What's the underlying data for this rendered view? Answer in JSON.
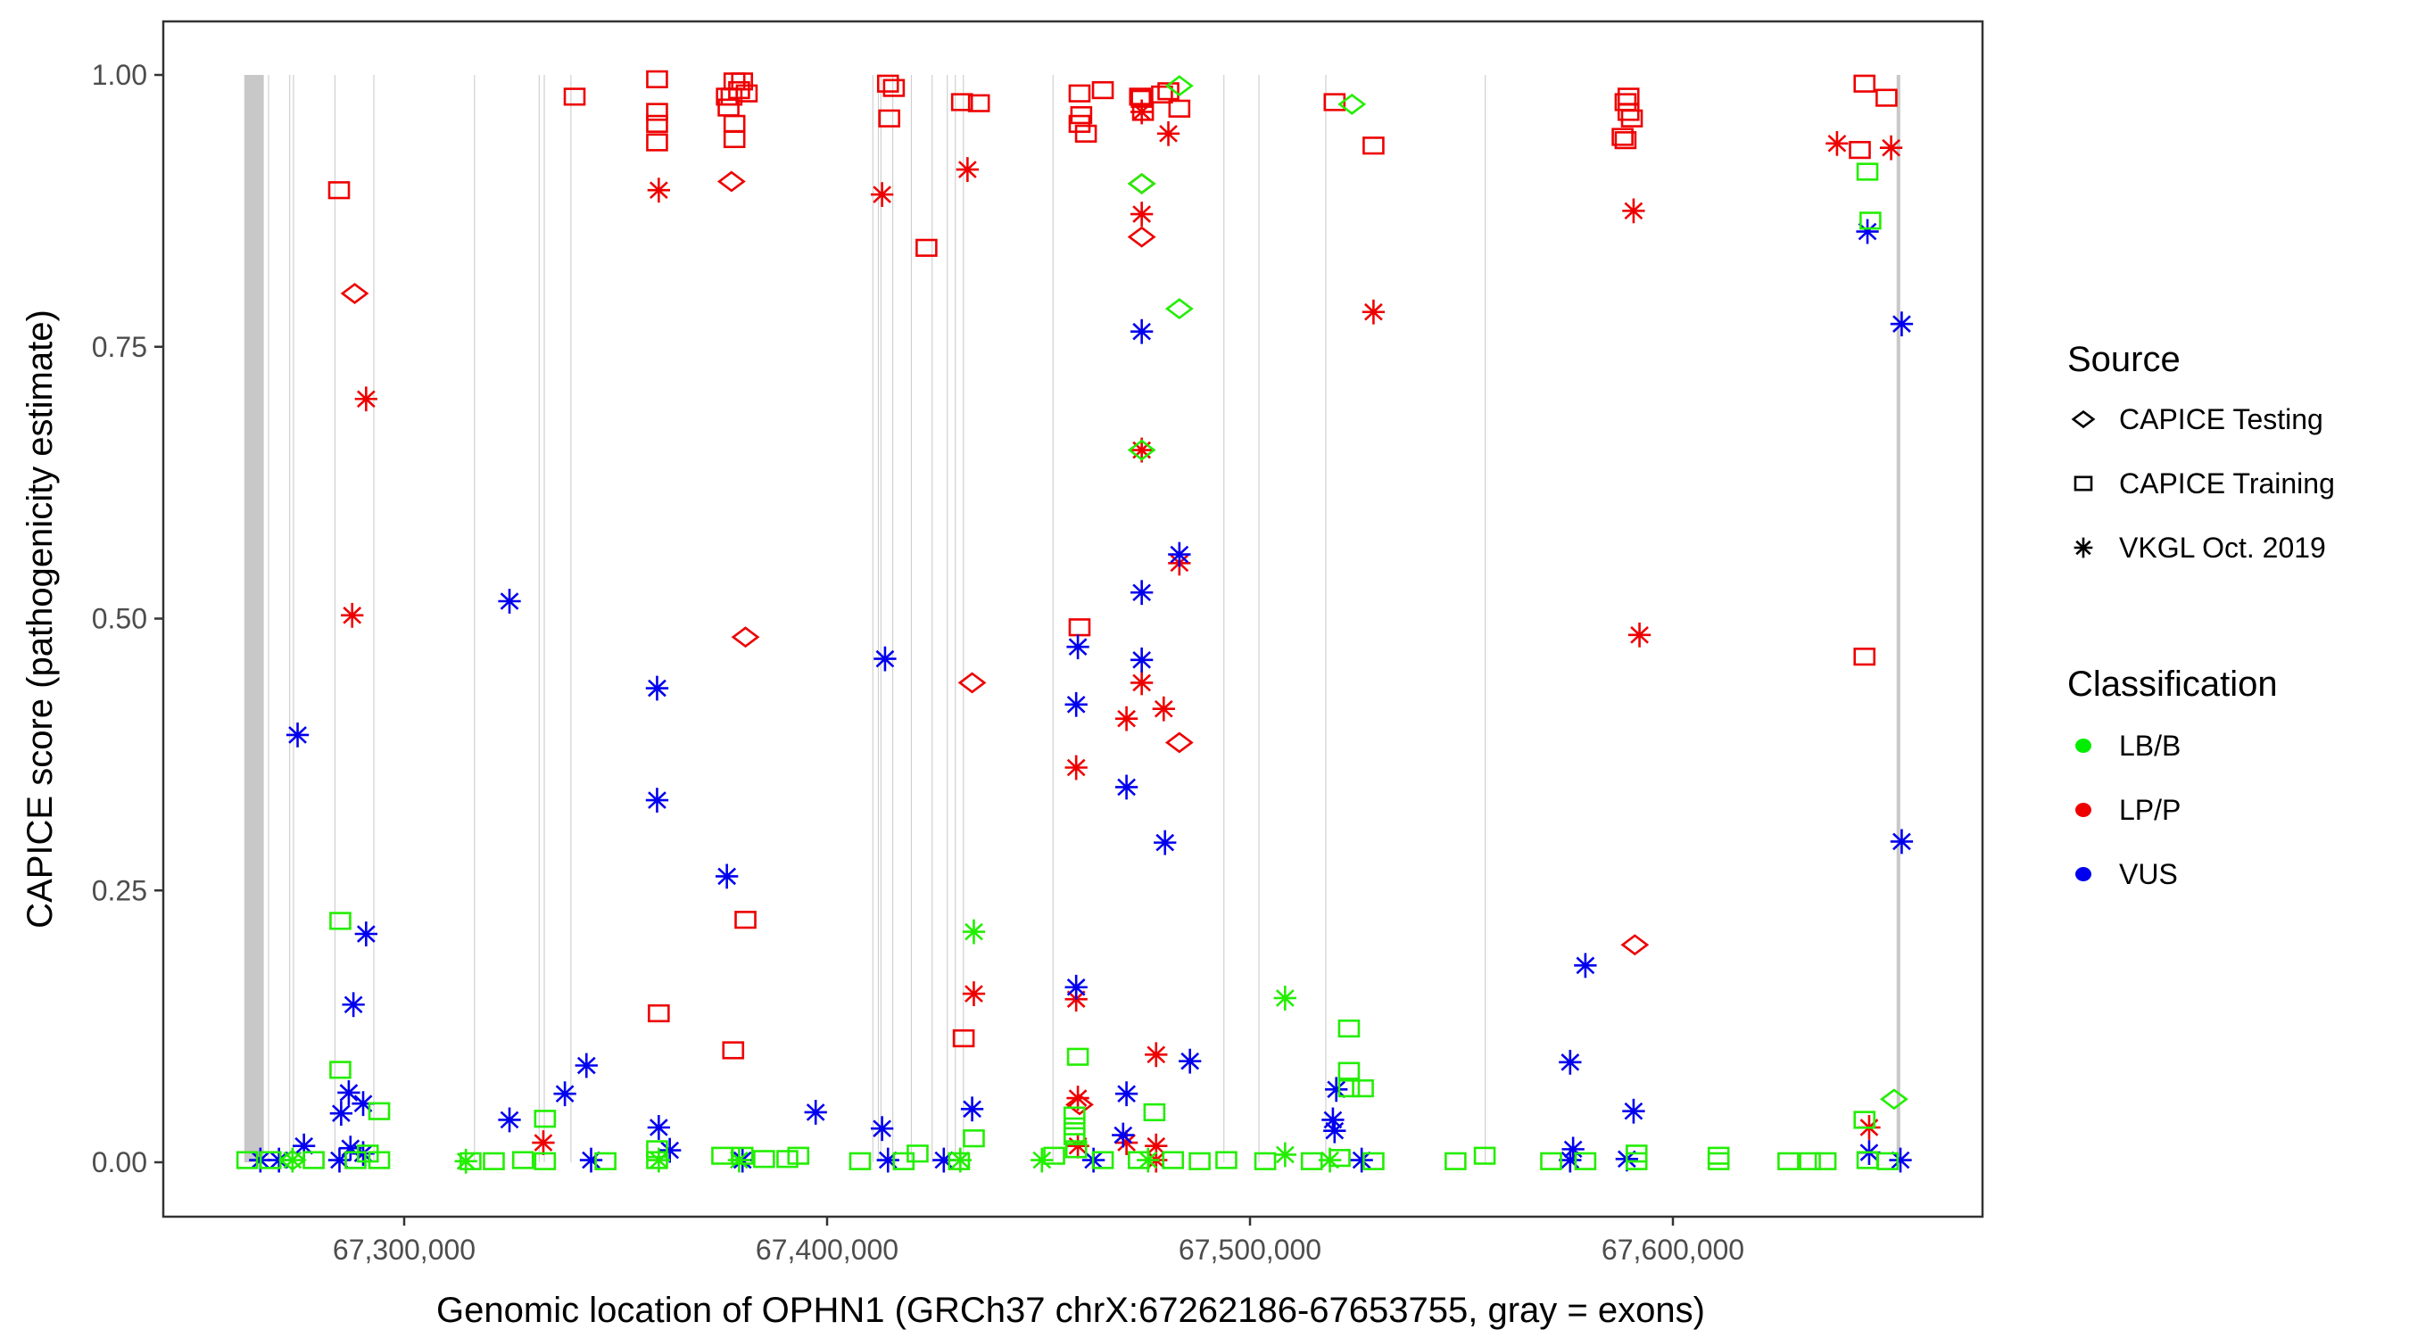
{
  "chart_data": {
    "type": "scatter",
    "title": "",
    "xlabel": "Genomic location of OPHN1 (GRCh37 chrX:67262186-67653755, gray = exons)",
    "ylabel": "CAPICE score (pathogenicity estimate)",
    "xlim": [
      67246000,
      67664000
    ],
    "ylim": [
      -0.05,
      1.05
    ],
    "x_ticks": [
      67300000,
      67400000,
      67500000,
      67600000
    ],
    "x_tick_labels": [
      "67,300,000",
      "67,400,000",
      "67,500,000",
      "67,600,000"
    ],
    "y_ticks": [
      0,
      0.25,
      0.5,
      0.75,
      1.0
    ],
    "y_tick_labels": [
      "0.00",
      "0.25",
      "0.50",
      "0.75",
      "1.00"
    ],
    "grid": false,
    "gene_range": [
      67262186,
      67653755
    ],
    "exons": [
      [
        67262186,
        67266800
      ],
      [
        67267800,
        67268000
      ],
      [
        67272800,
        67273000
      ],
      [
        67273700,
        67273900
      ],
      [
        67283500,
        67283700
      ],
      [
        67292700,
        67292900
      ],
      [
        67316500,
        67316700
      ],
      [
        67331800,
        67332000
      ],
      [
        67333000,
        67333200
      ],
      [
        67339300,
        67339500
      ],
      [
        67410700,
        67410900
      ],
      [
        67412000,
        67412200
      ],
      [
        67412600,
        67412800
      ],
      [
        67415400,
        67415600
      ],
      [
        67419800,
        67420000
      ],
      [
        67424700,
        67424900
      ],
      [
        67428300,
        67428500
      ],
      [
        67430200,
        67430400
      ],
      [
        67432100,
        67432300
      ],
      [
        67453300,
        67453500
      ],
      [
        67493700,
        67493900
      ],
      [
        67502000,
        67502200
      ],
      [
        67517800,
        67518000
      ],
      [
        67555500,
        67555700
      ],
      [
        67652900,
        67653755
      ]
    ],
    "legend": {
      "placement": "right",
      "source_title": "Source",
      "source_items": [
        {
          "label": "CAPICE Testing",
          "shape": "diamond"
        },
        {
          "label": "CAPICE Training",
          "shape": "square"
        },
        {
          "label": "VKGL Oct. 2019",
          "shape": "asterisk"
        }
      ],
      "class_title": "Classification",
      "class_items": [
        {
          "label": "LB/B",
          "color": "#00ee00"
        },
        {
          "label": "LP/P",
          "color": "#ee0000"
        },
        {
          "label": "VUS",
          "color": "#0000ee"
        }
      ]
    },
    "colors": {
      "LB/B": "#22ee00",
      "LP/P": "#ee0000",
      "VUS": "#0000ee"
    },
    "series": [
      {
        "source": "CAPICE Training",
        "class": "LP/P",
        "points": [
          [
            67284600,
            0.894
          ],
          [
            67340300,
            0.98
          ],
          [
            67359800,
            0.996
          ],
          [
            67359800,
            0.966
          ],
          [
            67359800,
            0.955
          ],
          [
            67359800,
            0.938
          ],
          [
            67376300,
            0.98
          ],
          [
            67378100,
            0.994
          ],
          [
            67379200,
            0.986
          ],
          [
            67379900,
            0.994
          ],
          [
            67381000,
            0.983
          ],
          [
            67376700,
            0.97
          ],
          [
            67378100,
            0.955
          ],
          [
            67378100,
            0.941
          ],
          [
            67377400,
            0.98
          ],
          [
            67414400,
            0.992
          ],
          [
            67415800,
            0.988
          ],
          [
            67414700,
            0.96
          ],
          [
            67423500,
            0.841
          ],
          [
            67431900,
            0.975
          ],
          [
            67435900,
            0.974
          ],
          [
            67459700,
            0.983
          ],
          [
            67460100,
            0.963
          ],
          [
            67459700,
            0.955
          ],
          [
            67461200,
            0.946
          ],
          [
            67465200,
            0.986
          ],
          [
            67474000,
            0.98
          ],
          [
            67474700,
            0.966
          ],
          [
            67474400,
            0.978
          ],
          [
            67479200,
            0.982
          ],
          [
            67480700,
            0.985
          ],
          [
            67483300,
            0.969
          ],
          [
            67520000,
            0.975
          ],
          [
            67529200,
            0.935
          ],
          [
            67588800,
            0.975
          ],
          [
            67589500,
            0.98
          ],
          [
            67589500,
            0.966
          ],
          [
            67590300,
            0.96
          ],
          [
            67588100,
            0.943
          ],
          [
            67588800,
            0.94
          ],
          [
            67645300,
            0.992
          ],
          [
            67650500,
            0.979
          ],
          [
            67644200,
            0.931
          ],
          [
            67645300,
            0.465
          ],
          [
            67360200,
            0.137
          ],
          [
            67377800,
            0.103
          ],
          [
            67380700,
            0.223
          ],
          [
            67432300,
            0.114
          ],
          [
            67459700,
            0.492
          ]
        ]
      },
      {
        "source": "CAPICE Testing",
        "class": "LP/P",
        "points": [
          [
            67288300,
            0.799
          ],
          [
            67377400,
            0.902
          ],
          [
            67380700,
            0.483
          ],
          [
            67434300,
            0.441
          ],
          [
            67474400,
            0.9
          ],
          [
            67474400,
            0.851
          ],
          [
            67483300,
            0.386
          ],
          [
            67591000,
            0.2
          ],
          [
            67459700,
            0.053
          ]
        ]
      },
      {
        "source": "VKGL Oct. 2019",
        "class": "LP/P",
        "points": [
          [
            67291000,
            0.702
          ],
          [
            67287700,
            0.503
          ],
          [
            67360200,
            0.894
          ],
          [
            67413000,
            0.89
          ],
          [
            67433200,
            0.913
          ],
          [
            67480700,
            0.946
          ],
          [
            67474400,
            0.966
          ],
          [
            67474400,
            0.872
          ],
          [
            67474400,
            0.655
          ],
          [
            67483300,
            0.551
          ],
          [
            67474400,
            0.441
          ],
          [
            67470800,
            0.408
          ],
          [
            67479600,
            0.417
          ],
          [
            67458900,
            0.363
          ],
          [
            67529200,
            0.782
          ],
          [
            67638800,
            0.937
          ],
          [
            67651600,
            0.933
          ],
          [
            67590700,
            0.875
          ],
          [
            67592100,
            0.485
          ],
          [
            67434700,
            0.155
          ],
          [
            67458900,
            0.15
          ],
          [
            67477800,
            0.099
          ],
          [
            67459300,
            0.059
          ],
          [
            67459300,
            0.015
          ],
          [
            67332900,
            0.018
          ],
          [
            67470800,
            0.018
          ],
          [
            67477800,
            0.015
          ],
          [
            67477800,
            0.002
          ],
          [
            67646400,
            0.032
          ]
        ]
      },
      {
        "source": "VKGL Oct. 2019",
        "class": "VUS",
        "points": [
          [
            67274800,
            0.393
          ],
          [
            67291000,
            0.21
          ],
          [
            67288000,
            0.145
          ],
          [
            67286900,
            0.064
          ],
          [
            67290300,
            0.054
          ],
          [
            67285100,
            0.045
          ],
          [
            67287300,
            0.013
          ],
          [
            67290300,
            0.008
          ],
          [
            67324900,
            0.516
          ],
          [
            67359800,
            0.436
          ],
          [
            67359800,
            0.333
          ],
          [
            67376300,
            0.263
          ],
          [
            67343100,
            0.089
          ],
          [
            67338000,
            0.063
          ],
          [
            67324900,
            0.039
          ],
          [
            67360200,
            0.032
          ],
          [
            67362800,
            0.011
          ],
          [
            67397300,
            0.046
          ],
          [
            67413700,
            0.463
          ],
          [
            67413000,
            0.031
          ],
          [
            67434300,
            0.049
          ],
          [
            67459300,
            0.474
          ],
          [
            67458900,
            0.421
          ],
          [
            67474400,
            0.764
          ],
          [
            67474400,
            0.524
          ],
          [
            67474400,
            0.462
          ],
          [
            67483300,
            0.559
          ],
          [
            67470800,
            0.345
          ],
          [
            67479900,
            0.294
          ],
          [
            67458900,
            0.161
          ],
          [
            67485800,
            0.093
          ],
          [
            67470800,
            0.063
          ],
          [
            67470000,
            0.025
          ],
          [
            67520400,
            0.067
          ],
          [
            67519600,
            0.039
          ],
          [
            67520000,
            0.029
          ],
          [
            67579300,
            0.181
          ],
          [
            67575700,
            0.092
          ],
          [
            67590700,
            0.047
          ],
          [
            67576400,
            0.012
          ],
          [
            67646000,
            0.856
          ],
          [
            67654100,
            0.771
          ],
          [
            67654100,
            0.295
          ],
          [
            67646400,
            0.009
          ],
          [
            67266000,
            0.002
          ],
          [
            67270400,
            0.002
          ],
          [
            67276300,
            0.015
          ],
          [
            67284700,
            0.002
          ],
          [
            67344200,
            0.002
          ],
          [
            67380000,
            0.002
          ],
          [
            67414400,
            0.002
          ],
          [
            67427600,
            0.002
          ],
          [
            67463000,
            0.002
          ],
          [
            67526400,
            0.002
          ],
          [
            67575700,
            0.002
          ],
          [
            67589100,
            0.003
          ],
          [
            67653800,
            0.002
          ]
        ]
      },
      {
        "source": "CAPICE Training",
        "class": "LB/B",
        "points": [
          [
            67284900,
            0.222
          ],
          [
            67284900,
            0.085
          ],
          [
            67294100,
            0.047
          ],
          [
            67291400,
            0.008
          ],
          [
            67288500,
            0.002
          ],
          [
            67262900,
            0.002
          ],
          [
            67268400,
            0.002
          ],
          [
            67278600,
            0.002
          ],
          [
            67294100,
            0.002
          ],
          [
            67315700,
            0.001
          ],
          [
            67321200,
            0.001
          ],
          [
            67328100,
            0.002
          ],
          [
            67333300,
            0.04
          ],
          [
            67333300,
            0.001
          ],
          [
            67347600,
            0.001
          ],
          [
            67359800,
            0.012
          ],
          [
            67359800,
            0.002
          ],
          [
            67375200,
            0.006
          ],
          [
            67380000,
            0.006
          ],
          [
            67385100,
            0.003
          ],
          [
            67390600,
            0.003
          ],
          [
            67393200,
            0.006
          ],
          [
            67407800,
            0.001
          ],
          [
            67418100,
            0.001
          ],
          [
            67421400,
            0.008
          ],
          [
            67431200,
            0.001
          ],
          [
            67434700,
            0.022
          ],
          [
            67459300,
            0.097
          ],
          [
            67458500,
            0.043
          ],
          [
            67458500,
            0.033
          ],
          [
            67458500,
            0.024
          ],
          [
            67458900,
            0.012
          ],
          [
            67453700,
            0.006
          ],
          [
            67465200,
            0.002
          ],
          [
            67473700,
            0.002
          ],
          [
            67477400,
            0.046
          ],
          [
            67481800,
            0.002
          ],
          [
            67488100,
            0.001
          ],
          [
            67494400,
            0.002
          ],
          [
            67503600,
            0.001
          ],
          [
            67514600,
            0.001
          ],
          [
            67521200,
            0.004
          ],
          [
            67523400,
            0.123
          ],
          [
            67523400,
            0.084
          ],
          [
            67523400,
            0.068
          ],
          [
            67526700,
            0.068
          ],
          [
            67529200,
            0.001
          ],
          [
            67548600,
            0.001
          ],
          [
            67555500,
            0.006
          ],
          [
            67571200,
            0.001
          ],
          [
            67579300,
            0.001
          ],
          [
            67591400,
            0.008
          ],
          [
            67591400,
            0.001
          ],
          [
            67610800,
            0.006
          ],
          [
            67610800,
            0.001
          ],
          [
            67627300,
            0.001
          ],
          [
            67632400,
            0.001
          ],
          [
            67636100,
            0.001
          ],
          [
            67646000,
            0.911
          ],
          [
            67646700,
            0.866
          ],
          [
            67645300,
            0.039
          ],
          [
            67646000,
            0.002
          ],
          [
            67650800,
            0.001
          ]
        ]
      },
      {
        "source": "CAPICE Testing",
        "class": "LB/B",
        "points": [
          [
            67483300,
            0.99
          ],
          [
            67524100,
            0.973
          ],
          [
            67474400,
            0.9
          ],
          [
            67483300,
            0.785
          ],
          [
            67474400,
            0.655
          ],
          [
            67652300,
            0.058
          ],
          [
            67273600,
            0.002
          ]
        ]
      },
      {
        "source": "VKGL Oct. 2019",
        "class": "LB/B",
        "points": [
          [
            67434700,
            0.212
          ],
          [
            67508300,
            0.151
          ],
          [
            67508300,
            0.007
          ],
          [
            67518900,
            0.002
          ],
          [
            67450800,
            0.002
          ],
          [
            67273600,
            0.002
          ],
          [
            67314600,
            0.001
          ],
          [
            67360200,
            0.002
          ],
          [
            67379200,
            0.002
          ],
          [
            67431500,
            0.002
          ],
          [
            67475900,
            0.002
          ]
        ]
      }
    ]
  }
}
